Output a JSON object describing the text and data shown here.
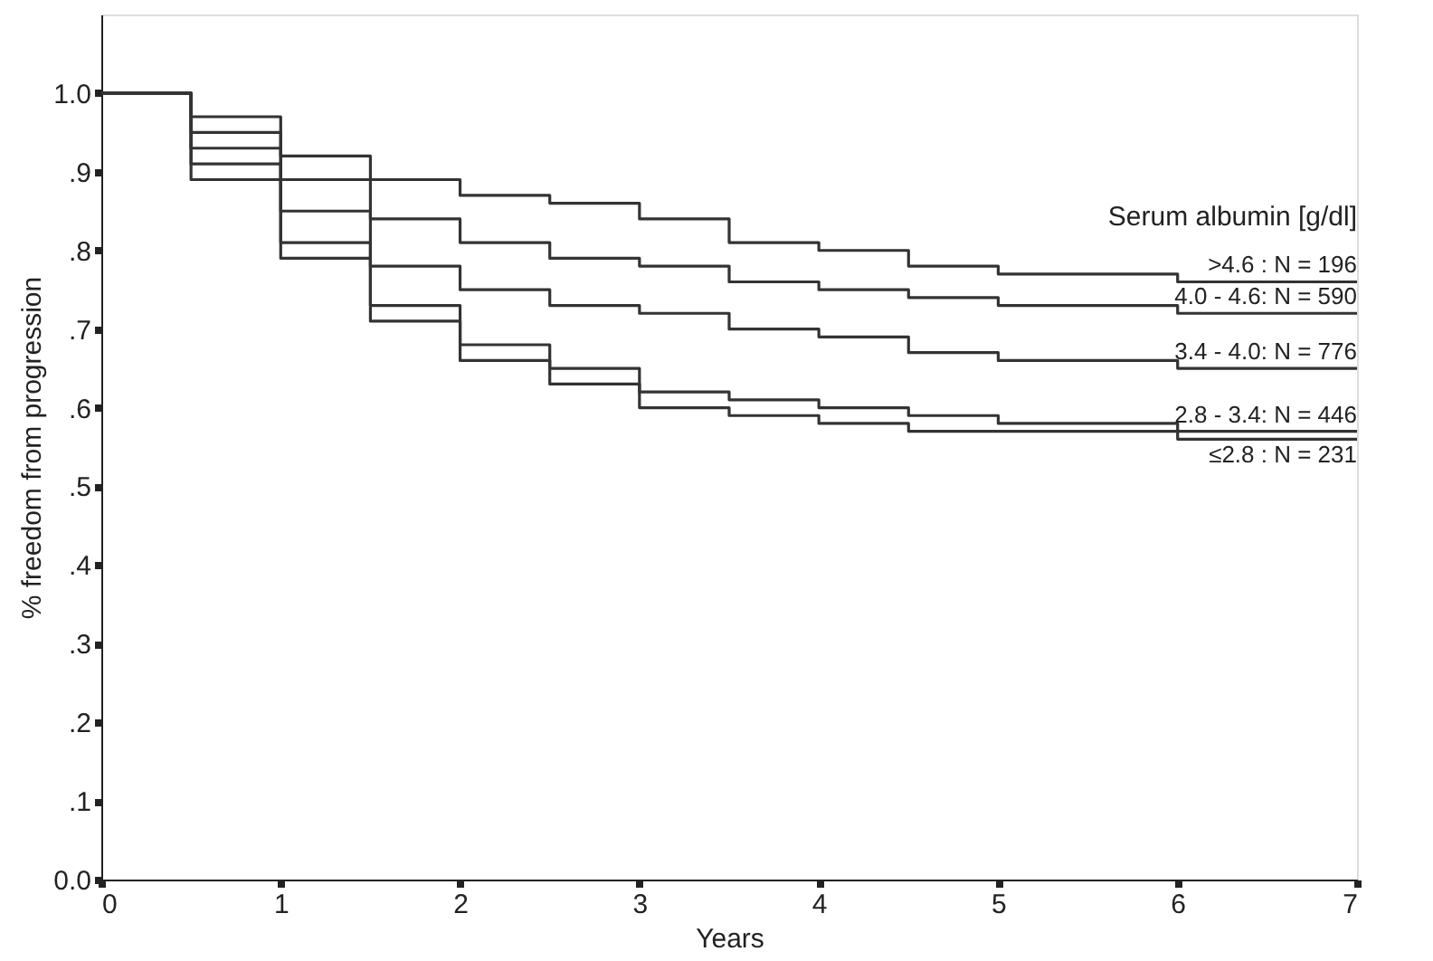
{
  "chart_data": {
    "type": "step",
    "xlabel": "Years",
    "ylabel": "% freedom from progression",
    "legend_title": "Serum albumin [g/dl]",
    "x": [
      0,
      0.5,
      1,
      1.5,
      2,
      2.5,
      3,
      3.5,
      4,
      4.5,
      5,
      6,
      7
    ],
    "series": [
      {
        "name": ">4.6      : N = 196",
        "color": "#333333",
        "values": [
          1.0,
          0.97,
          0.92,
          0.89,
          0.87,
          0.86,
          0.84,
          0.81,
          0.8,
          0.78,
          0.77,
          0.76,
          0.76
        ]
      },
      {
        "name": "4.0 - 4.6: N = 590",
        "color": "#333333",
        "values": [
          1.0,
          0.95,
          0.89,
          0.84,
          0.81,
          0.79,
          0.78,
          0.76,
          0.75,
          0.74,
          0.73,
          0.72,
          0.72
        ]
      },
      {
        "name": "3.4 - 4.0: N = 776",
        "color": "#333333",
        "values": [
          1.0,
          0.93,
          0.85,
          0.78,
          0.75,
          0.73,
          0.72,
          0.7,
          0.69,
          0.67,
          0.66,
          0.65,
          0.65
        ]
      },
      {
        "name": "2.8 - 3.4: N = 446",
        "color": "#333333",
        "values": [
          1.0,
          0.91,
          0.81,
          0.73,
          0.68,
          0.65,
          0.62,
          0.61,
          0.6,
          0.59,
          0.58,
          0.57,
          0.57
        ]
      },
      {
        "name": "≤2.8      : N = 231",
        "color": "#333333",
        "values": [
          1.0,
          0.89,
          0.79,
          0.71,
          0.66,
          0.63,
          0.6,
          0.59,
          0.58,
          0.57,
          0.57,
          0.56,
          0.56
        ]
      }
    ],
    "xlim": [
      0,
      7
    ],
    "xticks": [
      0,
      1,
      2,
      3,
      4,
      5,
      6,
      7
    ],
    "ylim": [
      0,
      1.1
    ],
    "yticks": [
      {
        "value": 0,
        "label": "0.0"
      },
      {
        "value": 0.1,
        "label": ".1"
      },
      {
        "value": 0.2,
        "label": ".2"
      },
      {
        "value": 0.3,
        "label": ".3"
      },
      {
        "value": 0.4,
        "label": ".4"
      },
      {
        "value": 0.5,
        "label": ".5"
      },
      {
        "value": 0.6,
        "label": ".6"
      },
      {
        "value": 0.7,
        "label": ".7"
      },
      {
        "value": 0.8,
        "label": ".8"
      },
      {
        "value": 0.9,
        "label": ".9"
      },
      {
        "value": 1.0,
        "label": "1.0"
      }
    ],
    "grid": false
  }
}
